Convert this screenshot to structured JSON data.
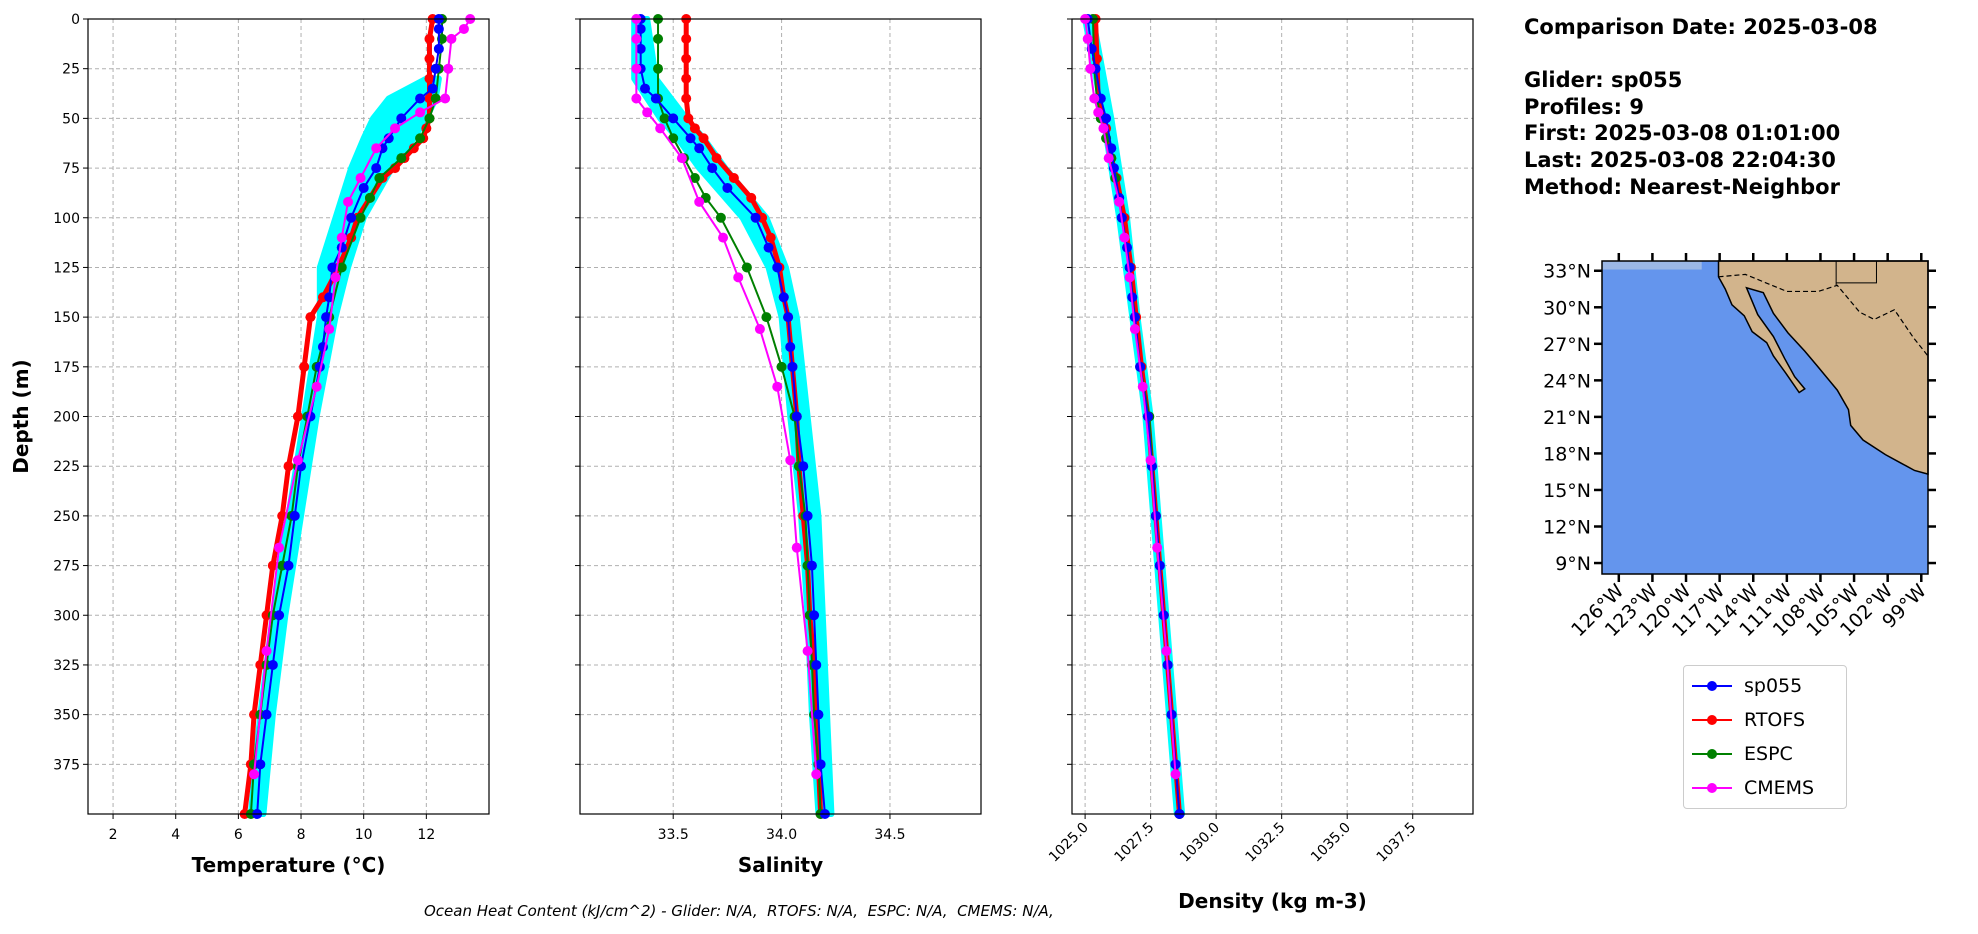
{
  "info": {
    "comparison_date": "Comparison Date: 2025-03-08",
    "glider": "Glider: sp055",
    "profiles": "Profiles: 9",
    "first": "First: 2025-03-08 01:01:00",
    "last": "Last: 2025-03-08 22:04:30",
    "method": "Method: Nearest-Neighbor"
  },
  "footer": "Ocean Heat Content (kJ/cm^2) - Glider: N/A,  RTOFS: N/A,  ESPC: N/A,  CMEMS: N/A,",
  "legend": [
    {
      "name": "sp055",
      "color": "#0000ff"
    },
    {
      "name": "RTOFS",
      "color": "#ff0000"
    },
    {
      "name": "ESPC",
      "color": "#008000"
    },
    {
      "name": "CMEMS",
      "color": "#ff00ff"
    }
  ],
  "map": {
    "lat_ticks": [
      "33°N",
      "30°N",
      "27°N",
      "24°N",
      "21°N",
      "18°N",
      "15°N",
      "12°N",
      "9°N"
    ],
    "lon_ticks": [
      "126°W",
      "123°W",
      "120°W",
      "117°W",
      "114°W",
      "111°W",
      "108°W",
      "105°W",
      "102°W",
      "99°W"
    ],
    "ocean_color": "#6495ed",
    "land_color": "#d2b48c"
  },
  "chart_data": [
    {
      "type": "line",
      "xlabel": "Temperature (°C)",
      "ylabel": "Depth (m)",
      "xlim": [
        1.2,
        14.0
      ],
      "ylim": [
        400,
        0
      ],
      "xticks": [
        2,
        4,
        6,
        8,
        10,
        12
      ],
      "yticks": [
        0,
        25,
        50,
        75,
        100,
        125,
        150,
        175,
        200,
        225,
        250,
        275,
        300,
        325,
        350,
        375
      ],
      "grid": true,
      "glider_profiles_color": "#00ffff",
      "glider_profiles_range": {
        "depth": [
          30,
          40,
          50,
          60,
          75,
          100,
          125,
          150,
          200,
          250,
          300,
          350,
          400
        ],
        "min": [
          12.0,
          10.8,
          10.3,
          10.0,
          9.6,
          9.1,
          8.6,
          8.6,
          8.1,
          7.6,
          7.1,
          6.7,
          6.4
        ],
        "max": [
          12.4,
          12.3,
          12.0,
          11.6,
          10.9,
          10.0,
          9.5,
          9.1,
          8.5,
          8.0,
          7.5,
          7.1,
          6.8
        ]
      },
      "series": [
        {
          "name": "sp055",
          "depth": [
            0,
            5,
            15,
            25,
            35,
            40,
            50,
            60,
            65,
            75,
            85,
            100,
            115,
            125,
            140,
            150,
            165,
            175,
            200,
            225,
            250,
            275,
            300,
            325,
            350,
            375,
            400
          ],
          "values": [
            12.4,
            12.4,
            12.4,
            12.3,
            12.2,
            11.8,
            11.2,
            10.8,
            10.6,
            10.4,
            10.0,
            9.6,
            9.3,
            9.0,
            8.9,
            8.8,
            8.7,
            8.6,
            8.3,
            8.0,
            7.8,
            7.6,
            7.3,
            7.1,
            6.9,
            6.7,
            6.6
          ]
        },
        {
          "name": "RTOFS",
          "depth": [
            0,
            10,
            20,
            30,
            40,
            50,
            55,
            60,
            65,
            70,
            75,
            80,
            90,
            100,
            110,
            125,
            140,
            150,
            175,
            200,
            225,
            250,
            275,
            300,
            325,
            350,
            375,
            400
          ],
          "values": [
            12.2,
            12.1,
            12.1,
            12.1,
            12.1,
            12.1,
            12.0,
            11.9,
            11.6,
            11.3,
            11.0,
            10.6,
            10.2,
            9.8,
            9.6,
            9.2,
            8.7,
            8.3,
            8.1,
            7.9,
            7.6,
            7.4,
            7.1,
            6.9,
            6.7,
            6.5,
            6.4,
            6.2
          ]
        },
        {
          "name": "ESPC",
          "depth": [
            0,
            10,
            25,
            40,
            50,
            60,
            70,
            80,
            90,
            100,
            125,
            150,
            175,
            200,
            225,
            250,
            275,
            300,
            325,
            350,
            375,
            400
          ],
          "values": [
            12.5,
            12.5,
            12.4,
            12.3,
            12.1,
            11.8,
            11.2,
            10.5,
            10.2,
            9.9,
            9.3,
            8.9,
            8.5,
            8.2,
            7.9,
            7.7,
            7.4,
            7.1,
            6.9,
            6.7,
            6.5,
            6.4
          ]
        },
        {
          "name": "CMEMS",
          "depth": [
            0,
            5,
            10,
            25,
            40,
            47,
            55,
            65,
            80,
            92,
            110,
            130,
            156,
            185,
            222,
            266,
            318,
            380
          ],
          "values": [
            13.4,
            13.2,
            12.8,
            12.7,
            12.6,
            11.8,
            11.0,
            10.4,
            9.9,
            9.5,
            9.3,
            9.1,
            8.9,
            8.5,
            7.9,
            7.3,
            6.9,
            6.5
          ]
        }
      ]
    },
    {
      "type": "line",
      "xlabel": "Salinity",
      "xlim": [
        33.07,
        34.92
      ],
      "ylim": [
        400,
        0
      ],
      "xticks": [
        33.5,
        34.0,
        34.5
      ],
      "yticks": [
        0,
        25,
        50,
        75,
        100,
        125,
        150,
        175,
        200,
        225,
        250,
        275,
        300,
        325,
        350,
        375
      ],
      "grid": true,
      "glider_profiles_range": {
        "depth": [
          0,
          30,
          50,
          60,
          75,
          100,
          125,
          150,
          200,
          250,
          300,
          350,
          400
        ],
        "min": [
          33.32,
          33.32,
          33.44,
          33.52,
          33.62,
          33.82,
          33.94,
          34.0,
          34.04,
          34.09,
          34.12,
          34.14,
          34.17
        ],
        "max": [
          33.38,
          33.42,
          33.56,
          33.64,
          33.74,
          33.93,
          34.02,
          34.07,
          34.12,
          34.17,
          34.19,
          34.21,
          34.23
        ]
      },
      "series": [
        {
          "name": "sp055",
          "depth": [
            0,
            5,
            15,
            25,
            35,
            40,
            50,
            60,
            65,
            75,
            85,
            100,
            115,
            125,
            140,
            150,
            165,
            175,
            200,
            225,
            250,
            275,
            300,
            325,
            350,
            375,
            400
          ],
          "values": [
            33.35,
            33.35,
            33.35,
            33.35,
            33.37,
            33.42,
            33.5,
            33.58,
            33.62,
            33.68,
            33.75,
            33.88,
            33.94,
            33.98,
            34.01,
            34.03,
            34.04,
            34.05,
            34.07,
            34.1,
            34.12,
            34.14,
            34.15,
            34.16,
            34.17,
            34.18,
            34.2
          ]
        },
        {
          "name": "RTOFS",
          "depth": [
            0,
            10,
            20,
            30,
            40,
            50,
            55,
            60,
            70,
            80,
            90,
            100,
            110,
            125,
            140,
            150,
            175,
            200,
            225,
            250,
            275,
            300,
            325,
            350,
            375,
            400
          ],
          "values": [
            33.56,
            33.56,
            33.56,
            33.56,
            33.56,
            33.57,
            33.6,
            33.64,
            33.7,
            33.78,
            33.86,
            33.91,
            33.95,
            33.99,
            34.01,
            34.03,
            34.05,
            34.07,
            34.08,
            34.1,
            34.12,
            34.13,
            34.15,
            34.16,
            34.17,
            34.18
          ]
        },
        {
          "name": "ESPC",
          "depth": [
            0,
            10,
            25,
            40,
            50,
            60,
            70,
            80,
            90,
            100,
            125,
            150,
            175,
            200,
            225,
            250,
            275,
            300,
            325,
            350,
            375,
            400
          ],
          "values": [
            33.43,
            33.43,
            33.43,
            33.43,
            33.46,
            33.5,
            33.55,
            33.6,
            33.65,
            33.72,
            33.84,
            33.93,
            34.0,
            34.06,
            34.08,
            34.11,
            34.12,
            34.13,
            34.14,
            34.15,
            34.17,
            34.18
          ]
        },
        {
          "name": "CMEMS",
          "depth": [
            0,
            10,
            25,
            40,
            47,
            55,
            70,
            92,
            110,
            130,
            156,
            185,
            222,
            266,
            318,
            380
          ],
          "values": [
            33.33,
            33.33,
            33.33,
            33.33,
            33.38,
            33.44,
            33.54,
            33.62,
            33.73,
            33.8,
            33.9,
            33.98,
            34.04,
            34.07,
            34.12,
            34.16
          ]
        }
      ]
    },
    {
      "type": "line",
      "xlabel": "Density (kg m-3)",
      "xlim": [
        1024.5,
        1039.8
      ],
      "ylim": [
        400,
        0
      ],
      "xticks": [
        1025.0,
        1027.5,
        1030.0,
        1032.5,
        1035.0,
        1037.5
      ],
      "yticks": [
        0,
        25,
        50,
        75,
        100,
        125,
        150,
        175,
        200,
        225,
        250,
        275,
        300,
        325,
        350,
        375
      ],
      "grid": true,
      "glider_profiles_range": {
        "depth": [
          0,
          50,
          100,
          150,
          200,
          250,
          300,
          350,
          400
        ],
        "min": [
          1025.0,
          1025.7,
          1026.3,
          1026.8,
          1027.3,
          1027.6,
          1027.9,
          1028.2,
          1028.5
        ],
        "max": [
          1025.3,
          1026.0,
          1026.6,
          1027.0,
          1027.5,
          1027.8,
          1028.1,
          1028.4,
          1028.7
        ]
      },
      "series": [
        {
          "name": "sp055",
          "depth": [
            0,
            15,
            25,
            40,
            50,
            65,
            75,
            90,
            100,
            115,
            125,
            140,
            150,
            175,
            200,
            225,
            250,
            275,
            300,
            325,
            350,
            375,
            400
          ],
          "values": [
            1025.1,
            1025.25,
            1025.4,
            1025.6,
            1025.8,
            1026.0,
            1026.1,
            1026.3,
            1026.4,
            1026.6,
            1026.7,
            1026.8,
            1026.9,
            1027.1,
            1027.4,
            1027.55,
            1027.7,
            1027.85,
            1028.0,
            1028.15,
            1028.3,
            1028.45,
            1028.6
          ]
        },
        {
          "name": "RTOFS",
          "depth": [
            0,
            20,
            40,
            55,
            70,
            80,
            100,
            125,
            150,
            175,
            200,
            225,
            250,
            275,
            300,
            325,
            350,
            375,
            400
          ],
          "values": [
            1025.4,
            1025.45,
            1025.5,
            1025.8,
            1026.0,
            1026.2,
            1026.5,
            1026.75,
            1026.95,
            1027.15,
            1027.4,
            1027.55,
            1027.7,
            1027.85,
            1028.0,
            1028.15,
            1028.3,
            1028.45,
            1028.6
          ]
        },
        {
          "name": "ESPC",
          "depth": [
            0,
            25,
            40,
            50,
            60,
            70,
            80,
            90,
            100,
            125,
            150,
            175,
            200,
            250,
            300,
            350,
            400
          ],
          "values": [
            1025.3,
            1025.35,
            1025.45,
            1025.6,
            1025.8,
            1026.0,
            1026.15,
            1026.3,
            1026.4,
            1026.7,
            1026.9,
            1027.1,
            1027.45,
            1027.7,
            1028.0,
            1028.3,
            1028.6
          ]
        },
        {
          "name": "CMEMS",
          "depth": [
            0,
            10,
            25,
            40,
            47,
            55,
            70,
            92,
            110,
            130,
            156,
            185,
            222,
            266,
            318,
            380
          ],
          "values": [
            1025.0,
            1025.1,
            1025.2,
            1025.35,
            1025.5,
            1025.7,
            1025.9,
            1026.3,
            1026.5,
            1026.7,
            1026.9,
            1027.2,
            1027.5,
            1027.75,
            1028.1,
            1028.45
          ]
        }
      ]
    }
  ]
}
